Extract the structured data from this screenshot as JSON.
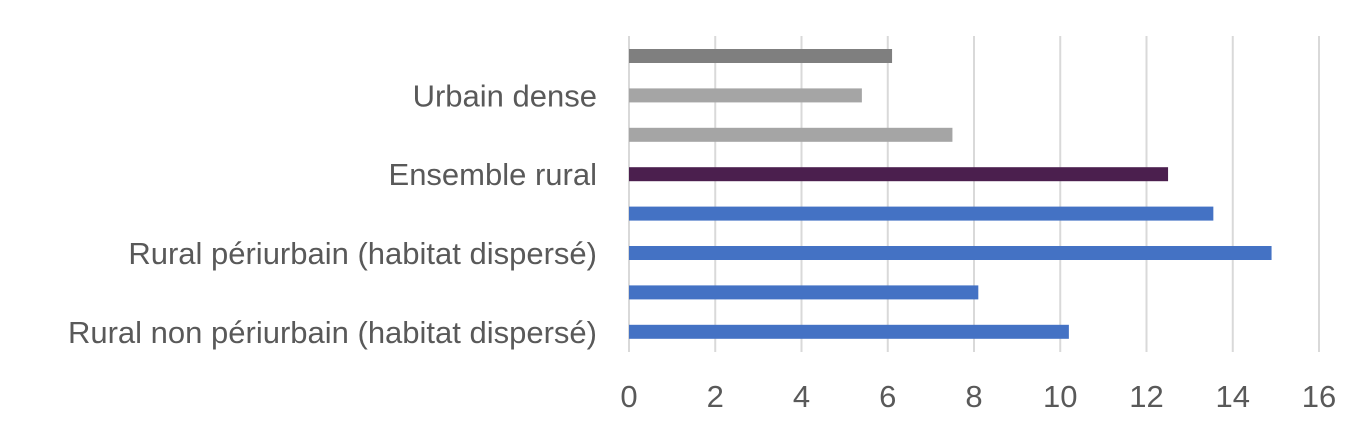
{
  "chart_data": {
    "type": "bar",
    "orientation": "horizontal",
    "title": "",
    "xlabel": "",
    "ylabel": "",
    "xlim": [
      0,
      16
    ],
    "xticks": [
      0,
      2,
      4,
      6,
      8,
      10,
      12,
      14,
      16
    ],
    "grid": true,
    "legend": "none",
    "categories": [
      "",
      "Urbain dense",
      "",
      "Ensemble rural",
      "",
      "Rural périurbain (habitat dispersé)",
      "",
      "Rural non périurbain (habitat dispersé)"
    ],
    "values": [
      6.1,
      5.4,
      7.5,
      12.5,
      13.55,
      14.9,
      8.1,
      10.2
    ],
    "colors": [
      "#7f7f7f",
      "#a5a5a5",
      "#a5a5a5",
      "#4b1f4e",
      "#4472c4",
      "#4472c4",
      "#4472c4",
      "#4472c4"
    ]
  }
}
